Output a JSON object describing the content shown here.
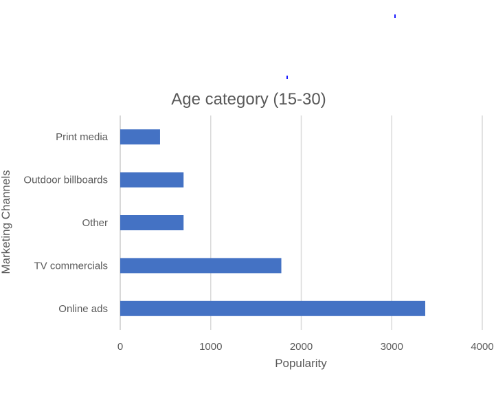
{
  "chart_data": {
    "type": "bar",
    "orientation": "horizontal",
    "title": "Age category (15-30)",
    "xlabel": "Popularity",
    "ylabel": "Marketing Channels",
    "categories": [
      "Print media",
      "Outdoor billboards",
      "Other",
      "TV commercials",
      "Online ads"
    ],
    "values": [
      440,
      700,
      700,
      1780,
      3370
    ],
    "xlim": [
      0,
      4000
    ],
    "xticks": [
      0,
      1000,
      2000,
      3000,
      4000
    ],
    "grid": true,
    "legend": "none",
    "colors": {
      "bar": "#4472c4",
      "grid": "#d9d9d9",
      "text": "#595959"
    }
  }
}
